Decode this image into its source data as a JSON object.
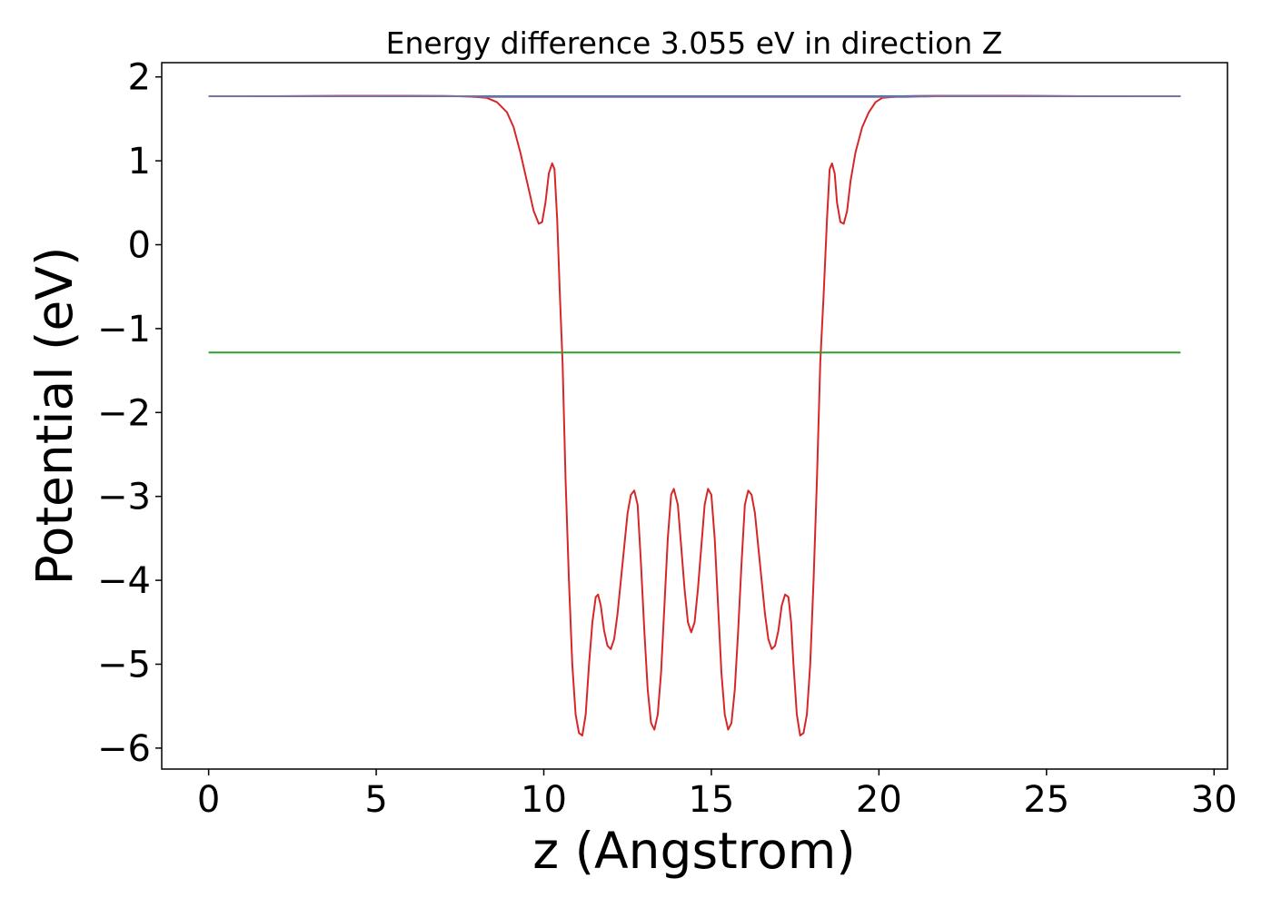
{
  "chart_data": {
    "type": "line",
    "title": "Energy difference 3.055 eV in direction Z",
    "xlabel": "z (Angstrom)",
    "ylabel": "Potential (eV)",
    "xlim": [
      -1.4,
      30.4
    ],
    "ylim": [
      -6.25,
      2.17
    ],
    "xticks": [
      0,
      5,
      10,
      15,
      20,
      25,
      30
    ],
    "yticks": [
      2,
      1,
      0,
      -1,
      -2,
      -3,
      -4,
      -5,
      -6
    ],
    "xtick_labels": [
      "0",
      "5",
      "10",
      "15",
      "20",
      "25",
      "30"
    ],
    "ytick_labels": [
      "2",
      "1",
      "0",
      "−1",
      "−2",
      "−3",
      "−4",
      "−5",
      "−6"
    ],
    "grid": false,
    "legend": false,
    "series": [
      {
        "color": "#d62728",
        "x": [
          0,
          2,
          4,
          6,
          7,
          7.5,
          8,
          8.3,
          8.6,
          8.9,
          9.1,
          9.3,
          9.5,
          9.7,
          9.85,
          9.95,
          10.05,
          10.15,
          10.25,
          10.32,
          10.4,
          10.48,
          10.56,
          10.65,
          10.75,
          10.85,
          10.95,
          11.05,
          11.15,
          11.25,
          11.35,
          11.45,
          11.55,
          11.62,
          11.7,
          11.8,
          11.9,
          12.0,
          12.1,
          12.2,
          12.3,
          12.4,
          12.5,
          12.6,
          12.7,
          12.8,
          12.9,
          13.0,
          13.1,
          13.2,
          13.3,
          13.4,
          13.5,
          13.6,
          13.7,
          13.8,
          13.88,
          14.0,
          14.1,
          14.2,
          14.3,
          14.4,
          14.5,
          14.6,
          14.7,
          14.8,
          14.9,
          15.0,
          15.1,
          15.2,
          15.3,
          15.4,
          15.5,
          15.6,
          15.7,
          15.8,
          15.9,
          16.0,
          16.1,
          16.2,
          16.3,
          16.4,
          16.5,
          16.6,
          16.7,
          16.8,
          16.9,
          17.0,
          17.1,
          17.2,
          17.3,
          17.38,
          17.45,
          17.55,
          17.65,
          17.75,
          17.85,
          17.95,
          18.05,
          18.15,
          18.25,
          18.35,
          18.45,
          18.53,
          18.6,
          18.68,
          18.75,
          18.85,
          18.95,
          19.05,
          19.15,
          19.3,
          19.5,
          19.7,
          19.9,
          20.1,
          20.4,
          20.7,
          21.0,
          22,
          24,
          26,
          29
        ],
        "values": [
          1.77,
          1.77,
          1.775,
          1.775,
          1.772,
          1.77,
          1.76,
          1.75,
          1.7,
          1.58,
          1.4,
          1.1,
          0.75,
          0.4,
          0.25,
          0.27,
          0.5,
          0.85,
          0.97,
          0.9,
          0.3,
          -0.6,
          -1.4,
          -2.8,
          -4.0,
          -5.0,
          -5.6,
          -5.82,
          -5.85,
          -5.6,
          -5.0,
          -4.5,
          -4.2,
          -4.17,
          -4.3,
          -4.6,
          -4.78,
          -4.82,
          -4.7,
          -4.4,
          -4.0,
          -3.6,
          -3.2,
          -2.98,
          -2.93,
          -3.1,
          -3.8,
          -4.6,
          -5.3,
          -5.7,
          -5.78,
          -5.6,
          -5.1,
          -4.3,
          -3.5,
          -2.98,
          -2.91,
          -3.1,
          -3.6,
          -4.1,
          -4.5,
          -4.62,
          -4.5,
          -4.1,
          -3.6,
          -3.1,
          -2.91,
          -2.98,
          -3.5,
          -4.3,
          -5.1,
          -5.6,
          -5.78,
          -5.7,
          -5.3,
          -4.6,
          -3.8,
          -3.1,
          -2.93,
          -2.98,
          -3.2,
          -3.6,
          -4.0,
          -4.4,
          -4.7,
          -4.82,
          -4.78,
          -4.6,
          -4.3,
          -4.17,
          -4.2,
          -4.5,
          -5.0,
          -5.6,
          -5.85,
          -5.82,
          -5.6,
          -5.0,
          -4.0,
          -2.8,
          -1.4,
          -0.6,
          0.3,
          0.9,
          0.97,
          0.85,
          0.5,
          0.27,
          0.25,
          0.4,
          0.75,
          1.1,
          1.4,
          1.58,
          1.7,
          1.75,
          1.76,
          1.77,
          1.772,
          1.775,
          1.775,
          1.77,
          1.77
        ]
      },
      {
        "color": "#1f77b4",
        "x": [
          0,
          29
        ],
        "values": [
          1.77,
          1.77
        ]
      },
      {
        "color": "#2ca02c",
        "x": [
          0,
          29
        ],
        "values": [
          -1.285,
          -1.285
        ]
      },
      {
        "color": "#7f6fa8",
        "x": [
          0,
          7,
          8,
          8.3,
          20.8,
          21.2,
          22,
          29
        ],
        "values": [
          1.77,
          1.772,
          1.765,
          1.762,
          1.762,
          1.765,
          1.772,
          1.77
        ]
      }
    ]
  }
}
